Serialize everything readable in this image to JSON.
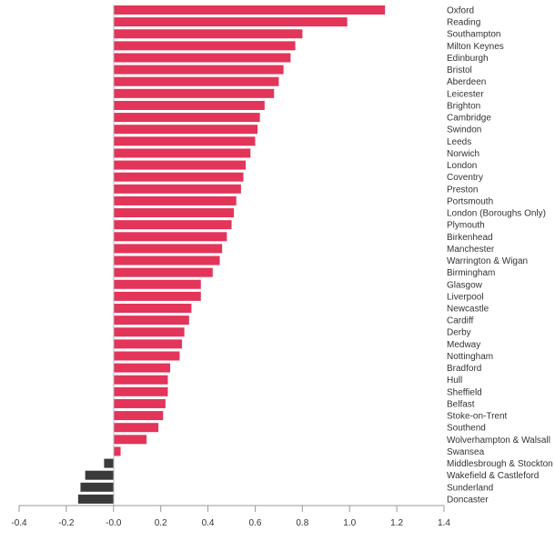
{
  "chart_data": {
    "type": "bar",
    "orientation": "horizontal",
    "title": "",
    "xlabel": "",
    "ylabel": "",
    "xlim": [
      -0.4,
      1.4
    ],
    "x_ticks": [
      "-0.4",
      "-0.2",
      "-0.0",
      "0.2",
      "0.4",
      "0.6",
      "0.8",
      "1.0",
      "1.2",
      "1.4"
    ],
    "x_tick_values": [
      -0.4,
      -0.2,
      0.0,
      0.2,
      0.4,
      0.6,
      0.8,
      1.0,
      1.2,
      1.4
    ],
    "grid": false,
    "colors": {
      "positive": "#e3345a",
      "negative": "#3a3a3a"
    },
    "categories": [
      "Oxford",
      "Reading",
      "Southampton",
      "Milton Keynes",
      "Edinburgh",
      "Bristol",
      "Aberdeen",
      "Leicester",
      "Brighton",
      "Cambridge",
      "Swindon",
      "Leeds",
      "Norwich",
      "London",
      "Coventry",
      "Preston",
      "Portsmouth",
      "London (Boroughs Only)",
      "Plymouth",
      "Birkenhead",
      "Manchester",
      "Warrington & Wigan",
      "Birmingham",
      "Glasgow",
      "Liverpool",
      "Newcastle",
      "Cardiff",
      "Derby",
      "Medway",
      "Nottingham",
      "Bradford",
      "Hull",
      "Sheffield",
      "Belfast",
      "Stoke-on-Trent",
      "Southend",
      "Wolverhampton & Walsall",
      "Swansea",
      "Middlesbrough & Stockton",
      "Wakefield & Castleford",
      "Sunderland",
      "Doncaster"
    ],
    "values": [
      1.15,
      0.99,
      0.8,
      0.77,
      0.75,
      0.72,
      0.7,
      0.68,
      0.64,
      0.62,
      0.61,
      0.6,
      0.58,
      0.56,
      0.55,
      0.54,
      0.52,
      0.51,
      0.5,
      0.48,
      0.46,
      0.45,
      0.42,
      0.37,
      0.37,
      0.33,
      0.32,
      0.3,
      0.29,
      0.28,
      0.24,
      0.23,
      0.23,
      0.22,
      0.21,
      0.19,
      0.14,
      0.03,
      -0.04,
      -0.12,
      -0.14,
      -0.15
    ]
  }
}
